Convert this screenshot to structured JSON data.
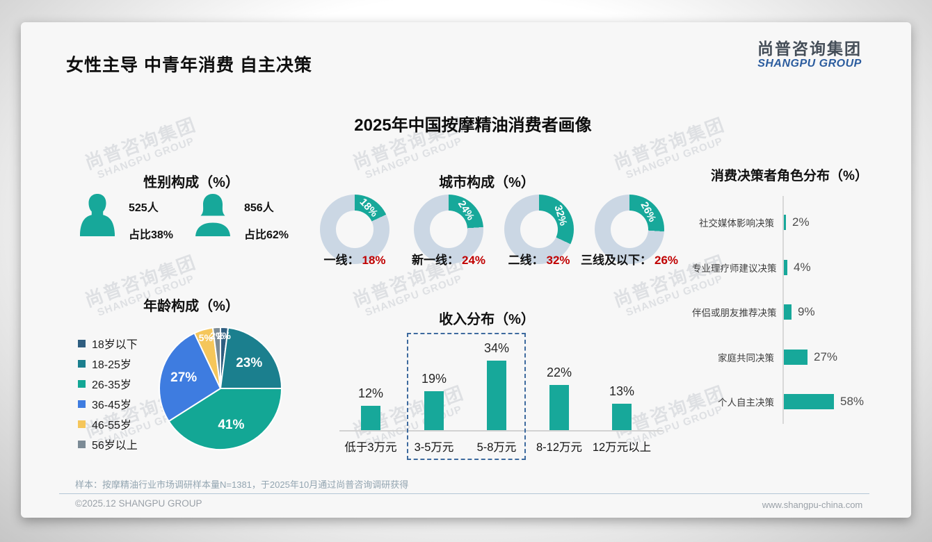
{
  "slide": {
    "title": "女性主导 中青年消费 自主决策",
    "main_title": "2025年中国按摩精油消费者画像",
    "logo": {
      "cn": "尚普咨询集团",
      "en": "SHANGPU GROUP"
    },
    "watermark": {
      "cn": "尚普咨询集团",
      "en": "SHANGPU GROUP"
    },
    "sample_note": "样本：按摩精油行业市场调研样本量N=1381，于2025年10月通过尚普咨询调研获得",
    "footer": {
      "copyright": "©2025.12 SHANGPU GROUP",
      "website": "www.shangpu-china.com"
    }
  },
  "colors": {
    "teal": "#17A89A",
    "donut_rest": "#CBD7E4",
    "accent_red": "#C00000",
    "pie": [
      "#2F5E80",
      "#1B7F8E",
      "#13A795",
      "#3E7CE0",
      "#F5C65B",
      "#7C8B96"
    ],
    "dashed_box": "#3D6A9E"
  },
  "chart_data": [
    {
      "id": "gender",
      "type": "table",
      "title": "性别构成（%）",
      "rows": [
        {
          "icon": "male",
          "count": "525人",
          "share": "占比38%"
        },
        {
          "icon": "female",
          "count": "856人",
          "share": "占比62%"
        }
      ]
    },
    {
      "id": "city",
      "type": "pie",
      "variant": "donut",
      "title": "城市构成（%）",
      "categories": [
        "一线",
        "新一线",
        "二线",
        "三线及以下"
      ],
      "values": [
        18,
        24,
        32,
        26
      ],
      "unit": "%",
      "label_separator": "：",
      "legend_position": "below-each-donut"
    },
    {
      "id": "decision",
      "type": "bar",
      "orientation": "horizontal",
      "title": "消费决策者角色分布（%）",
      "categories": [
        "社交媒体影响决策",
        "专业理疗师建议决策",
        "伴侣或朋友推荐决策",
        "家庭共同决策",
        "个人自主决策"
      ],
      "values": [
        2,
        4,
        9,
        27,
        58
      ],
      "unit": "%",
      "xlim": [
        0,
        60
      ],
      "grid": false
    },
    {
      "id": "age",
      "type": "pie",
      "title": "年龄构成（%）",
      "categories": [
        "18岁以下",
        "18-25岁",
        "26-35岁",
        "36-45岁",
        "46-55岁",
        "56岁以上"
      ],
      "values": [
        2,
        23,
        41,
        27,
        5,
        2
      ],
      "unit": "%",
      "legend_position": "left"
    },
    {
      "id": "income",
      "type": "bar",
      "orientation": "vertical",
      "title": "收入分布（%）",
      "categories": [
        "低于3万元",
        "3-5万元",
        "5-8万元",
        "8-12万元",
        "12万元以上"
      ],
      "values": [
        12,
        19,
        34,
        22,
        13
      ],
      "unit": "%",
      "ylim": [
        0,
        40
      ],
      "highlight_box": [
        "3-5万元",
        "5-8万元"
      ],
      "grid": false
    }
  ]
}
